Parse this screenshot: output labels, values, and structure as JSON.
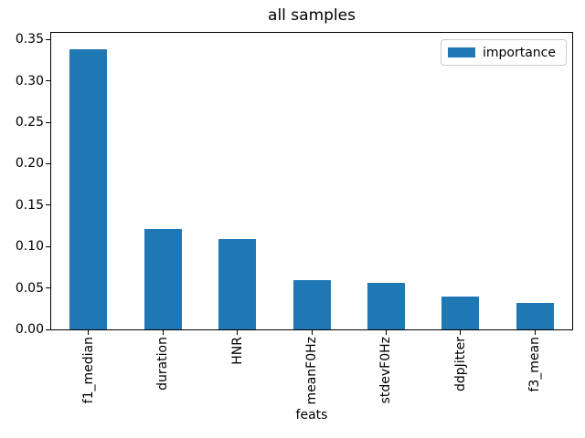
{
  "chart_data": {
    "type": "bar",
    "title": "all samples",
    "xlabel": "feats",
    "ylabel": "",
    "categories": [
      "f1_median",
      "duration",
      "HNR",
      "meanF0Hz",
      "stdevF0Hz",
      "ddpJitter",
      "f3_mean"
    ],
    "series": [
      {
        "name": "importance",
        "values": [
          0.338,
          0.121,
          0.109,
          0.059,
          0.056,
          0.04,
          0.032
        ]
      }
    ],
    "ylim": [
      0,
      0.358
    ],
    "yticks": [
      "0.00",
      "0.05",
      "0.10",
      "0.15",
      "0.20",
      "0.25",
      "0.30",
      "0.35"
    ],
    "bar_color": "#1f77b4",
    "axis_color": "#000000",
    "legend_edge_color": "#cccccc",
    "legend_position": "upper right",
    "grid": false,
    "xticklabel_rotation": 90
  },
  "legend": {
    "label": "importance"
  }
}
